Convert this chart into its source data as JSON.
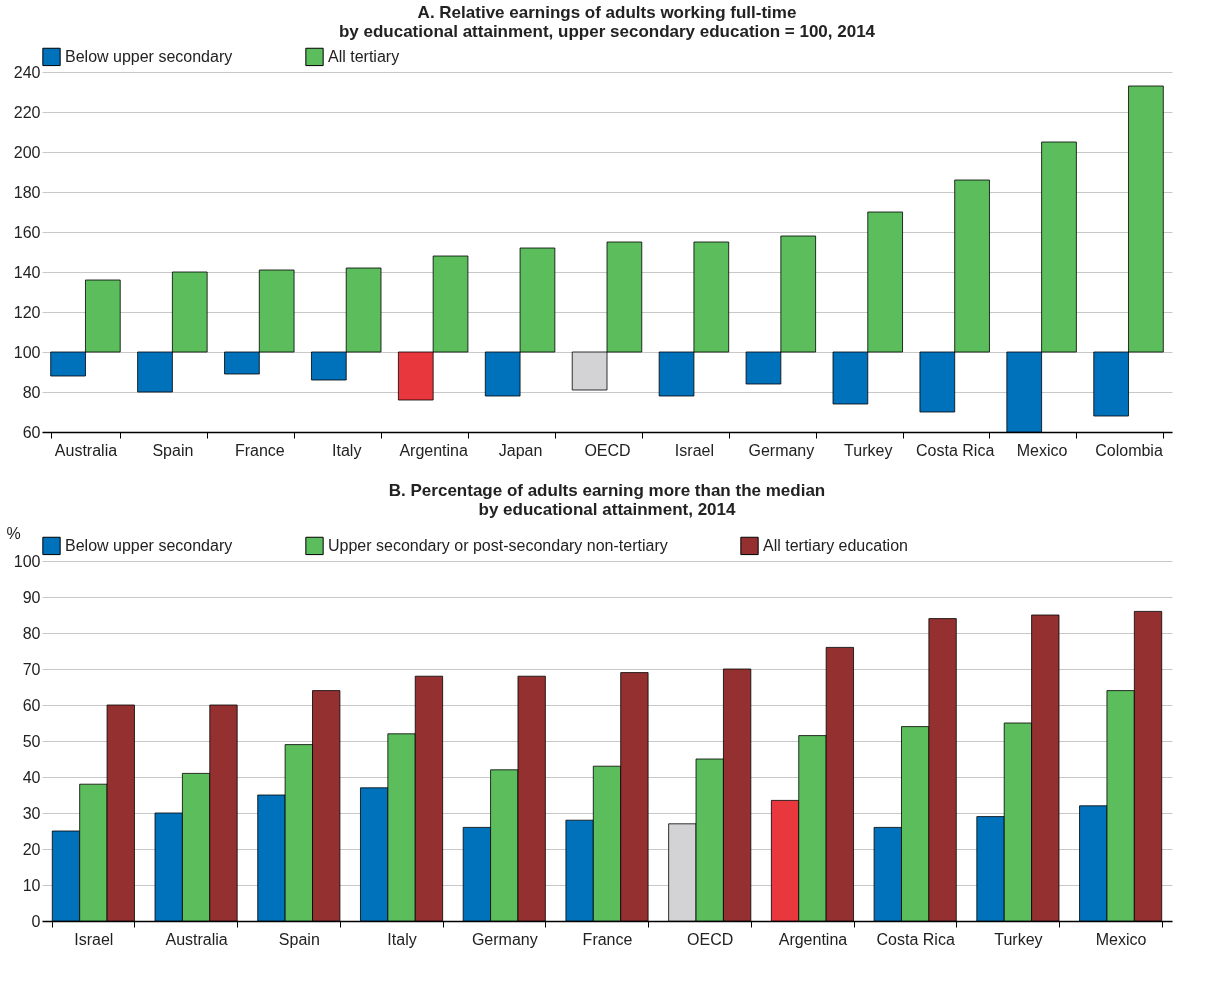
{
  "chart_data": [
    {
      "type": "bar",
      "title": "A. Relative earnings of adults working full-time\nby educational attainment, upper secondary education = 100, 2014",
      "categories": [
        "Australia",
        "Spain",
        "France",
        "Italy",
        "Argentina",
        "Japan",
        "OECD",
        "Israel",
        "Germany",
        "Turkey",
        "Costa Rica",
        "Mexico",
        "Colombia"
      ],
      "series": [
        {
          "name": "Below upper secondary",
          "color": "#0072bc",
          "colors": [
            "#0072bc",
            "#0072bc",
            "#0072bc",
            "#0072bc",
            "#e8383d",
            "#0072bc",
            "#d3d3d5",
            "#0072bc",
            "#0072bc",
            "#0072bc",
            "#0072bc",
            "#0072bc",
            "#0072bc"
          ],
          "base": [
            100,
            100,
            100,
            100,
            100,
            100,
            100,
            100,
            100,
            100,
            100,
            100,
            100
          ],
          "values": [
            -12,
            -20,
            -11,
            -14,
            -24,
            -22,
            -19,
            -22,
            -16,
            -26,
            -30,
            -40,
            -32
          ]
        },
        {
          "name": "All tertiary",
          "color": "#5cbd5c",
          "base": [
            100,
            100,
            100,
            100,
            100,
            100,
            100,
            100,
            100,
            100,
            100,
            100,
            100
          ],
          "values": [
            36,
            40,
            41,
            42,
            48,
            52,
            55,
            55,
            58,
            70,
            86,
            105,
            133
          ]
        }
      ],
      "ylim": [
        60,
        240
      ],
      "yticks": [
        60,
        80,
        100,
        120,
        140,
        160,
        180,
        200,
        220,
        240
      ],
      "grid": "y",
      "legend": "top"
    },
    {
      "type": "bar",
      "title": "B. Percentage of adults earning more than the median\nby educational attainment, 2014",
      "ylabel": "%",
      "categories": [
        "Israel",
        "Australia",
        "Spain",
        "Italy",
        "Germany",
        "France",
        "OECD",
        "Argentina",
        "Costa Rica",
        "Turkey",
        "Mexico"
      ],
      "series": [
        {
          "name": "Below upper secondary",
          "color": "#0072bc",
          "colors": [
            "#0072bc",
            "#0072bc",
            "#0072bc",
            "#0072bc",
            "#0072bc",
            "#0072bc",
            "#d3d3d5",
            "#e8383d",
            "#0072bc",
            "#0072bc",
            "#0072bc"
          ],
          "values": [
            25,
            30,
            35,
            37,
            26,
            28,
            27,
            33.5,
            26,
            29,
            32
          ]
        },
        {
          "name": "Upper secondary or post-secondary non-tertiary",
          "color": "#5cbd5c",
          "values": [
            38,
            41,
            49,
            52,
            42,
            43,
            45,
            51.5,
            54,
            55,
            64
          ]
        },
        {
          "name": "All tertiary education",
          "color": "#943130",
          "values": [
            60,
            60,
            64,
            68,
            68,
            69,
            70,
            76,
            84,
            85,
            86
          ]
        }
      ],
      "ylim": [
        0,
        100
      ],
      "yticks": [
        0,
        10,
        20,
        30,
        40,
        50,
        60,
        70,
        80,
        90,
        100
      ],
      "grid": "y",
      "legend": "top"
    }
  ]
}
